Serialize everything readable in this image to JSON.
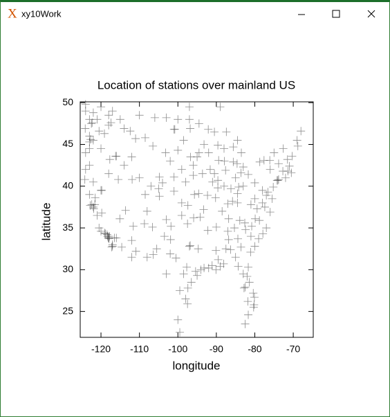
{
  "window": {
    "title": "xy10Work"
  },
  "chart_data": {
    "type": "scatter",
    "title": "Location of stations over mainland US",
    "x_label": "longitude",
    "y_label": "latitude",
    "xlim": [
      -125.4,
      -64.8
    ],
    "ylim": [
      21.9,
      50.1
    ],
    "xticks": [
      -120,
      -110,
      -100,
      -90,
      -80,
      -70
    ],
    "yticks": [
      25,
      30,
      35,
      40,
      45,
      50
    ],
    "color": "#000000",
    "marker": "+",
    "x": [
      -124,
      -123,
      -122.5,
      -122.3,
      -123,
      -124,
      -123,
      -124,
      -123,
      -122,
      -123,
      -122.4,
      -122,
      -121.9,
      -121,
      -120.5,
      -119,
      -118.3,
      -118,
      -117.2,
      -117,
      -116,
      -119.8,
      -121.5,
      -120,
      -119.8,
      -117,
      -118.4,
      -116,
      -112,
      -111,
      -114,
      -108.5,
      -106.5,
      -104.8,
      -105,
      -104.8,
      -108.5,
      -111.9,
      -112,
      -110.9,
      -111.6,
      -106.6,
      -106.4,
      -115.1,
      -117.4,
      -112.4,
      -110,
      -107,
      -103,
      -103.5,
      -105.5,
      -114.6,
      -113.6,
      -108,
      -115.5,
      -118,
      -117.7,
      -120,
      -120.5,
      -119.1,
      -121,
      -118,
      -115,
      -110,
      -106,
      -103,
      -100,
      -97,
      -101,
      -100.8,
      -96.8,
      -103.2,
      -98.5,
      -96.7,
      -100,
      -101,
      -96,
      -98,
      -99,
      -97.4,
      -95.7,
      -99,
      -101,
      -97.5,
      -95.9,
      -99,
      -101.8,
      -97,
      -96.8,
      -95.4,
      -97.7,
      -98.5,
      -101.9,
      -97.4,
      -97.5,
      -99.5,
      -100.5,
      -102,
      -94,
      -93.2,
      -94.7,
      -92,
      -91.1,
      -90.1,
      -90.1,
      -89,
      -88.1,
      -86.8,
      -86.3,
      -85,
      -87,
      -84.4,
      -81.1,
      -83.6,
      -84.3,
      -82.5,
      -81.4,
      -80.2,
      -80.1,
      -81.8,
      -81.7,
      -82,
      -81.7,
      -80,
      -81,
      -82.4,
      -80.8,
      -79.9,
      -78.8,
      -77.9,
      -76,
      -77.4,
      -79.4,
      -80,
      -77,
      -76.6,
      -75.2,
      -74,
      -73.8,
      -74.2,
      -72.7,
      -71.4,
      -71,
      -70.3,
      -68.8,
      -68,
      -72.6,
      -71.5,
      -73.8,
      -76.1,
      -78.7,
      -77.6,
      -80,
      -81.7,
      -83,
      -84.5,
      -84.2,
      -83.6,
      -83,
      -84.6,
      -85.6,
      -86.2,
      -87.6,
      -87.9,
      -89.4,
      -88,
      -89.6,
      -89.6,
      -90.2,
      -92.3,
      -94.6,
      -93.3,
      -92.2,
      -94.2,
      -90,
      -86.8,
      -85.8,
      -84.5,
      -83.9,
      -82.6,
      -85.3,
      -88.5,
      -90.5,
      -91.6,
      -93.6,
      -96,
      -93.2,
      -92.1,
      -94.5,
      -90.5,
      -87.4,
      -84.5,
      -85.6,
      -83.5,
      -89.6,
      -95,
      -91,
      -88,
      -87,
      -85,
      -81,
      -78,
      -76,
      -75,
      -69,
      -79,
      -77,
      -117.8,
      -118.1,
      -117.9,
      -116.5,
      -122.8,
      -121.6,
      -124.2,
      -124.1,
      -120,
      -118.8,
      -96.5,
      -95,
      -89.5,
      -87.5,
      -83,
      -80.4,
      -82.8,
      -80.3,
      -99.5,
      -82.5,
      -98,
      -103,
      -108,
      -112,
      -100,
      -118,
      -122,
      -122.7,
      -123,
      -116.2,
      -114,
      -108.7,
      -104,
      -102,
      -94.5,
      -92,
      -78,
      -75.5,
      -70.5,
      -72,
      -97,
      -89,
      -120,
      -124,
      -122,
      -117
    ],
    "y": [
      49,
      48,
      47.5,
      47.6,
      46,
      44,
      44.5,
      42,
      42.5,
      40.5,
      39,
      37.8,
      37.5,
      37.3,
      36.5,
      35,
      34.4,
      34,
      33.8,
      32.7,
      33,
      33.8,
      36.8,
      38.6,
      39.5,
      39.5,
      32.8,
      34.2,
      43.6,
      43.5,
      45.7,
      46.9,
      45.8,
      44.8,
      41.1,
      39.7,
      38.8,
      39,
      40.8,
      33.5,
      32.2,
      35.2,
      35.1,
      31.8,
      36.1,
      47.6,
      46.6,
      41,
      40,
      36,
      34,
      32.5,
      32.7,
      37.1,
      37,
      40.8,
      41.5,
      43.2,
      44.5,
      46.6,
      46.3,
      48,
      48.5,
      48,
      48.5,
      48.2,
      48.2,
      48,
      48,
      46.8,
      46.8,
      46.9,
      44,
      45.5,
      43.5,
      44.3,
      41.1,
      41.3,
      40.5,
      42,
      37.7,
      39,
      38,
      39.4,
      35.5,
      36.2,
      36.5,
      35.2,
      32.8,
      32.9,
      29.8,
      30.3,
      29.5,
      33.6,
      27.8,
      25.9,
      27.5,
      31.4,
      31.9,
      30,
      30.2,
      32.5,
      30.2,
      30.5,
      30,
      32.3,
      30.4,
      30.7,
      33.6,
      32.4,
      31.5,
      34.6,
      33.7,
      32.1,
      32.7,
      30.4,
      27.9,
      28.5,
      25.8,
      26.7,
      26.2,
      24.6,
      29.2,
      30.3,
      32.8,
      34,
      34.8,
      35.2,
      36.1,
      35.9,
      34.3,
      36.9,
      37.5,
      37.3,
      38.5,
      38.9,
      39.3,
      39.9,
      40.7,
      40.8,
      40.7,
      41.8,
      41.8,
      42.4,
      43.6,
      44.8,
      46.6,
      44.5,
      43.2,
      42.7,
      43.1,
      42.9,
      43.1,
      40.4,
      41.4,
      40,
      39.1,
      39.9,
      41.6,
      42.3,
      42.7,
      42.9,
      39.7,
      41.9,
      43,
      43.1,
      44.5,
      40.7,
      39.8,
      38.6,
      38.9,
      39.1,
      37.2,
      34.7,
      36.3,
      35.1,
      36.1,
      38.2,
      38,
      35.9,
      35.6,
      35,
      37,
      41.5,
      42,
      41.5,
      42.5,
      45,
      46.8,
      47.5,
      46.5,
      46.5,
      45.5,
      44.7,
      44,
      44.9,
      43.5,
      40.5,
      40,
      37.9,
      41,
      37.8,
      39.5,
      42,
      44,
      45.5,
      33.7,
      35,
      34,
      33.8,
      33.7,
      33.8,
      37.7,
      37.8,
      40.8,
      46.9,
      34.6,
      34.3,
      28.5,
      29.3,
      31.2,
      32.5,
      29.5,
      27.2,
      27.8,
      25.5,
      22.5,
      23.5,
      26.5,
      29.5,
      31.5,
      31.5,
      24,
      47.3,
      45.5,
      45.6,
      45.3,
      43.6,
      42.5,
      35.5,
      40.4,
      43,
      44,
      44,
      38,
      38.5,
      41.6,
      41,
      49.5,
      49.5,
      49.5,
      49.8,
      48.8,
      49
    ]
  }
}
